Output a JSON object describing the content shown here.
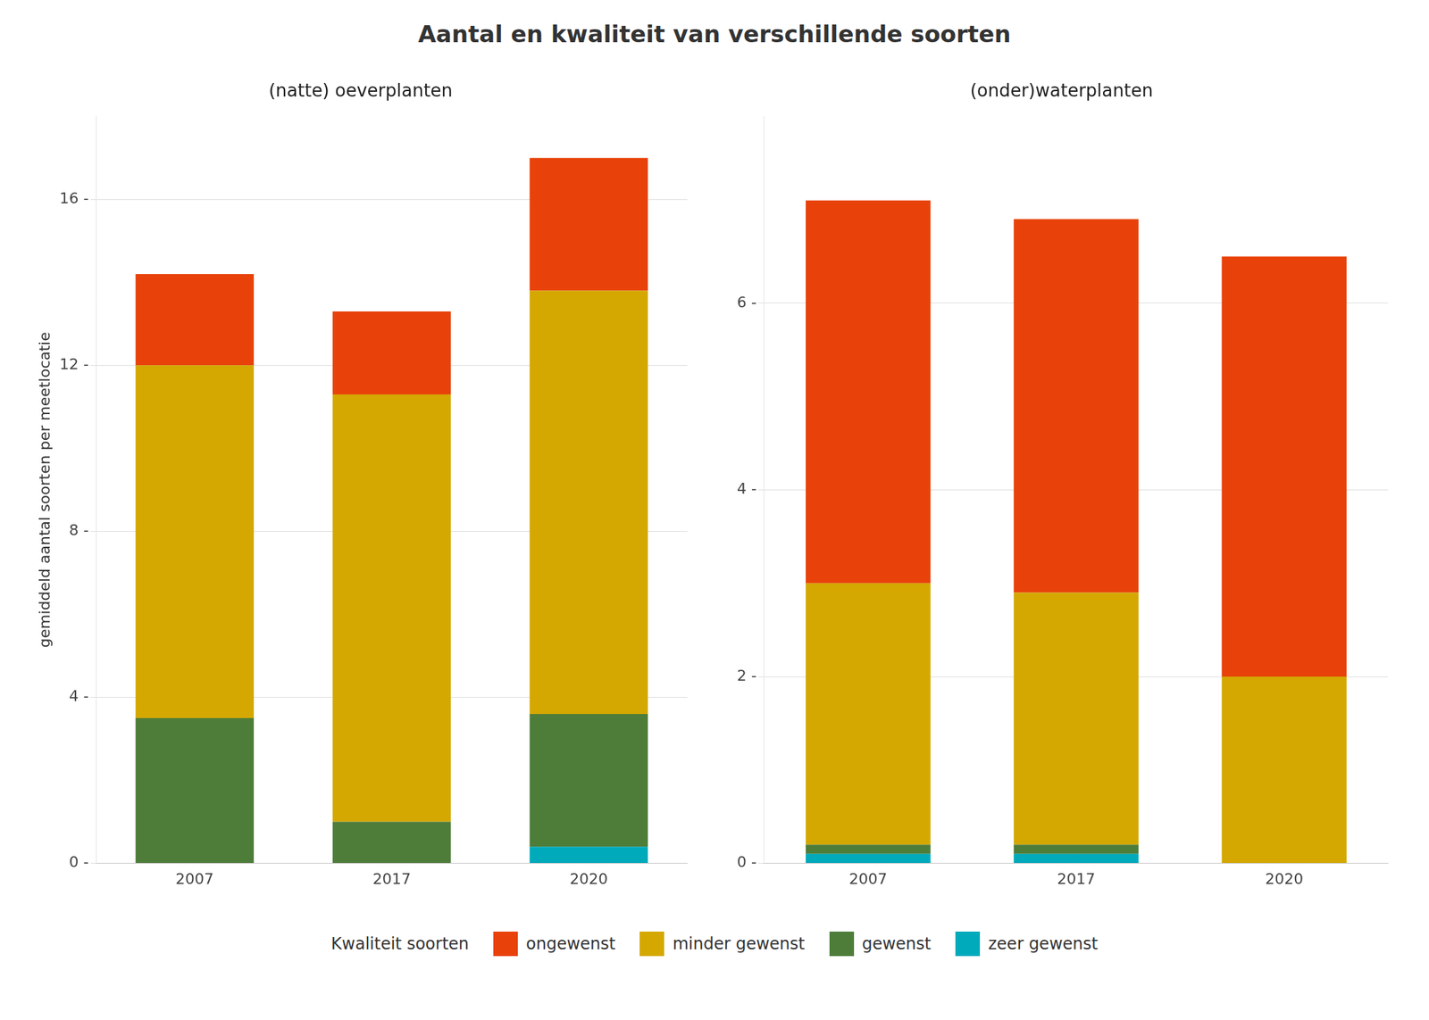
{
  "title": "Aantal en kwaliteit van verschillende soorten",
  "legend_title": "Kwaliteit soorten",
  "legend": "bottom",
  "chart_data": [
    {
      "type": "bar",
      "stacked": true,
      "subtitle": "(natte) oeverplanten",
      "ylabel": "gemiddeld aantal soorten per meetlocatie",
      "categories": [
        "2007",
        "2017",
        "2020"
      ],
      "series": [
        {
          "name": "zeer gewenst",
          "color": "#00AABB",
          "values": [
            0.0,
            0.0,
            0.4
          ]
        },
        {
          "name": "gewenst",
          "color": "#4E7D3A",
          "values": [
            3.5,
            1.0,
            3.2
          ]
        },
        {
          "name": "minder gewenst",
          "color": "#D4A800",
          "values": [
            8.5,
            10.3,
            10.2
          ]
        },
        {
          "name": "ongewenst",
          "color": "#E8420A",
          "values": [
            2.2,
            2.0,
            3.2
          ]
        }
      ],
      "ylim": [
        0,
        18
      ],
      "yticks": [
        {
          "value": 0,
          "label": "0 -"
        },
        {
          "value": 4,
          "label": "4 -"
        },
        {
          "value": 8,
          "label": "8 -"
        },
        {
          "value": 12,
          "label": "12 -"
        },
        {
          "value": 16,
          "label": "16 -"
        }
      ],
      "grid": true
    },
    {
      "type": "bar",
      "stacked": true,
      "subtitle": "(onder)waterplanten",
      "categories": [
        "2007",
        "2017",
        "2020"
      ],
      "series": [
        {
          "name": "zeer gewenst",
          "color": "#00AABB",
          "values": [
            0.1,
            0.1,
            0.0
          ]
        },
        {
          "name": "gewenst",
          "color": "#4E7D3A",
          "values": [
            0.1,
            0.1,
            0.0
          ]
        },
        {
          "name": "minder gewenst",
          "color": "#D4A800",
          "values": [
            2.8,
            2.7,
            2.0
          ]
        },
        {
          "name": "ongewenst",
          "color": "#E8420A",
          "values": [
            4.1,
            4.0,
            4.5
          ]
        }
      ],
      "ylim": [
        0,
        8
      ],
      "yticks": [
        {
          "value": 0,
          "label": "0 -"
        },
        {
          "value": 2,
          "label": "2 -"
        },
        {
          "value": 4,
          "label": "4 -"
        },
        {
          "value": 6,
          "label": "6 -"
        }
      ],
      "grid": true
    }
  ]
}
